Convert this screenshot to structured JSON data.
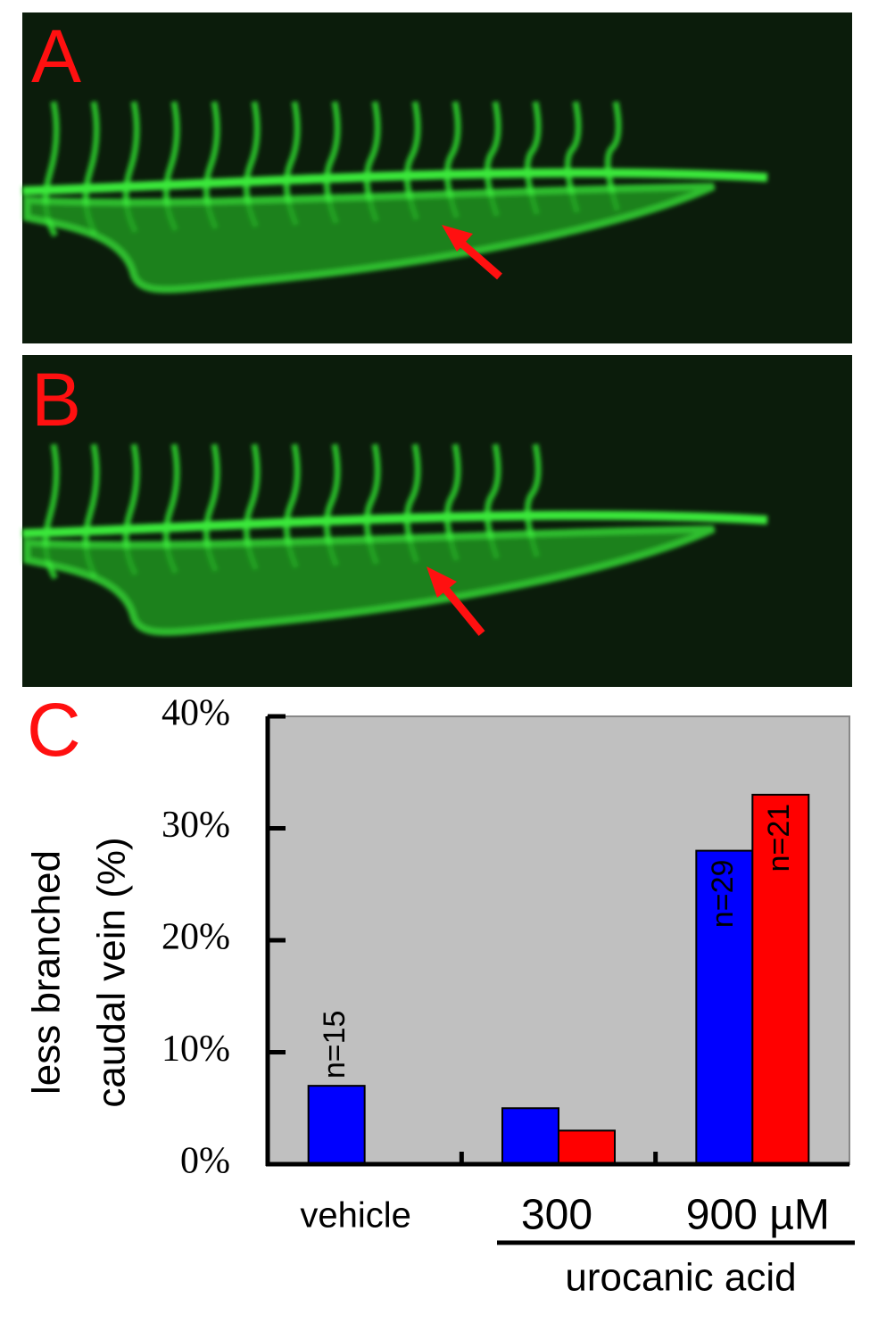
{
  "panels": [
    {
      "label": "A"
    },
    {
      "label": "B"
    }
  ],
  "chart_data": {
    "type": "bar",
    "panel_label": "C",
    "ylabel": [
      "less branched",
      "caudal vein (%)"
    ],
    "categories": [
      "vehicle",
      "300",
      "900 µM"
    ],
    "group_label": "urocanic acid",
    "series": [
      {
        "color": "#0000ff",
        "values": [
          7,
          5,
          28
        ],
        "n_labels": [
          "n=15",
          null,
          "n=29"
        ]
      },
      {
        "color": "#ff0000",
        "values": [
          null,
          3,
          33
        ],
        "n_labels": [
          null,
          null,
          "n=21"
        ]
      }
    ],
    "ylim": [
      0,
      40
    ],
    "yticks": [
      {
        "value": 0,
        "label": "0%"
      },
      {
        "value": 10,
        "label": "10%"
      },
      {
        "value": 20,
        "label": "20%"
      },
      {
        "value": 30,
        "label": "30%"
      },
      {
        "value": 40,
        "label": "40%"
      }
    ],
    "background": "#c0c0c0"
  }
}
